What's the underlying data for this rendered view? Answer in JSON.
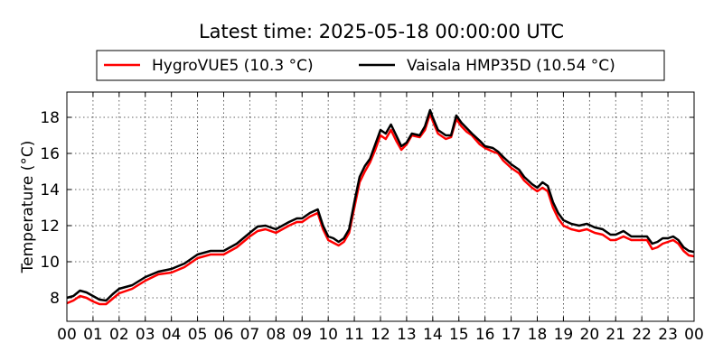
{
  "chart_data": {
    "type": "line",
    "title": "Latest time: 2025-05-18 00:00:00 UTC",
    "xlabel": "",
    "ylabel": "Temperature (°C)",
    "xlim": [
      0,
      24
    ],
    "ylim": [
      6.7,
      19.4
    ],
    "yticks": [
      8,
      10,
      12,
      14,
      16,
      18
    ],
    "xticks": [
      0,
      1,
      2,
      3,
      4,
      5,
      6,
      7,
      8,
      9,
      10,
      11,
      12,
      13,
      14,
      15,
      16,
      17,
      18,
      19,
      20,
      21,
      22,
      23,
      24
    ],
    "xtick_labels": [
      "00",
      "01",
      "02",
      "03",
      "04",
      "05",
      "06",
      "07",
      "08",
      "09",
      "10",
      "11",
      "12",
      "13",
      "14",
      "15",
      "16",
      "17",
      "18",
      "19",
      "20",
      "21",
      "22",
      "23",
      "00"
    ],
    "grid": true,
    "legend_position": "top-center",
    "series": [
      {
        "name": "HygroVUE5 (10.3 °C)",
        "color": "#ff0000",
        "points": [
          [
            0.0,
            7.7
          ],
          [
            0.25,
            7.85
          ],
          [
            0.5,
            8.1
          ],
          [
            0.75,
            8.0
          ],
          [
            1.0,
            7.8
          ],
          [
            1.25,
            7.65
          ],
          [
            1.5,
            7.65
          ],
          [
            1.75,
            7.95
          ],
          [
            2.0,
            8.25
          ],
          [
            2.5,
            8.5
          ],
          [
            3.0,
            8.95
          ],
          [
            3.5,
            9.3
          ],
          [
            4.0,
            9.4
          ],
          [
            4.5,
            9.7
          ],
          [
            5.0,
            10.2
          ],
          [
            5.5,
            10.4
          ],
          [
            6.0,
            10.4
          ],
          [
            6.5,
            10.8
          ],
          [
            7.0,
            11.4
          ],
          [
            7.3,
            11.7
          ],
          [
            7.6,
            11.8
          ],
          [
            8.0,
            11.6
          ],
          [
            8.5,
            12.0
          ],
          [
            8.8,
            12.2
          ],
          [
            9.0,
            12.2
          ],
          [
            9.3,
            12.5
          ],
          [
            9.6,
            12.7
          ],
          [
            9.8,
            11.8
          ],
          [
            10.0,
            11.2
          ],
          [
            10.2,
            11.05
          ],
          [
            10.4,
            10.9
          ],
          [
            10.6,
            11.1
          ],
          [
            10.8,
            11.6
          ],
          [
            11.0,
            13.0
          ],
          [
            11.2,
            14.4
          ],
          [
            11.4,
            15.0
          ],
          [
            11.6,
            15.5
          ],
          [
            11.8,
            16.2
          ],
          [
            12.0,
            17.0
          ],
          [
            12.2,
            16.8
          ],
          [
            12.4,
            17.3
          ],
          [
            12.6,
            16.7
          ],
          [
            12.8,
            16.2
          ],
          [
            13.0,
            16.5
          ],
          [
            13.2,
            17.0
          ],
          [
            13.5,
            16.9
          ],
          [
            13.7,
            17.3
          ],
          [
            13.9,
            18.2
          ],
          [
            14.0,
            17.8
          ],
          [
            14.2,
            17.1
          ],
          [
            14.5,
            16.8
          ],
          [
            14.7,
            16.9
          ],
          [
            14.9,
            17.9
          ],
          [
            15.1,
            17.5
          ],
          [
            15.3,
            17.2
          ],
          [
            15.5,
            17.0
          ],
          [
            15.8,
            16.5
          ],
          [
            16.0,
            16.3
          ],
          [
            16.3,
            16.1
          ],
          [
            16.5,
            16.0
          ],
          [
            16.7,
            15.6
          ],
          [
            17.0,
            15.2
          ],
          [
            17.3,
            14.9
          ],
          [
            17.5,
            14.5
          ],
          [
            17.8,
            14.1
          ],
          [
            18.0,
            13.9
          ],
          [
            18.2,
            14.1
          ],
          [
            18.4,
            13.9
          ],
          [
            18.6,
            13.0
          ],
          [
            18.8,
            12.4
          ],
          [
            19.0,
            12.0
          ],
          [
            19.3,
            11.8
          ],
          [
            19.6,
            11.7
          ],
          [
            19.9,
            11.8
          ],
          [
            20.2,
            11.6
          ],
          [
            20.5,
            11.5
          ],
          [
            20.8,
            11.2
          ],
          [
            21.0,
            11.2
          ],
          [
            21.3,
            11.4
          ],
          [
            21.6,
            11.2
          ],
          [
            22.0,
            11.2
          ],
          [
            22.2,
            11.2
          ],
          [
            22.4,
            10.7
          ],
          [
            22.6,
            10.8
          ],
          [
            22.8,
            11.0
          ],
          [
            23.0,
            11.1
          ],
          [
            23.2,
            11.2
          ],
          [
            23.4,
            11.0
          ],
          [
            23.6,
            10.6
          ],
          [
            23.8,
            10.35
          ],
          [
            24.0,
            10.3
          ]
        ]
      },
      {
        "name": "Vaisala HMP35D (10.54 °C)",
        "color": "#000000",
        "points": [
          [
            0.0,
            8.0
          ],
          [
            0.25,
            8.1
          ],
          [
            0.5,
            8.4
          ],
          [
            0.75,
            8.3
          ],
          [
            1.0,
            8.1
          ],
          [
            1.25,
            7.9
          ],
          [
            1.5,
            7.85
          ],
          [
            1.75,
            8.2
          ],
          [
            2.0,
            8.5
          ],
          [
            2.5,
            8.7
          ],
          [
            3.0,
            9.15
          ],
          [
            3.5,
            9.45
          ],
          [
            4.0,
            9.6
          ],
          [
            4.5,
            9.9
          ],
          [
            5.0,
            10.4
          ],
          [
            5.5,
            10.6
          ],
          [
            6.0,
            10.6
          ],
          [
            6.5,
            11.0
          ],
          [
            7.0,
            11.6
          ],
          [
            7.3,
            11.95
          ],
          [
            7.6,
            12.0
          ],
          [
            8.0,
            11.8
          ],
          [
            8.5,
            12.2
          ],
          [
            8.8,
            12.4
          ],
          [
            9.0,
            12.4
          ],
          [
            9.3,
            12.7
          ],
          [
            9.6,
            12.9
          ],
          [
            9.8,
            12.0
          ],
          [
            10.0,
            11.4
          ],
          [
            10.2,
            11.3
          ],
          [
            10.4,
            11.1
          ],
          [
            10.6,
            11.3
          ],
          [
            10.8,
            11.8
          ],
          [
            11.0,
            13.3
          ],
          [
            11.2,
            14.7
          ],
          [
            11.4,
            15.3
          ],
          [
            11.6,
            15.7
          ],
          [
            11.8,
            16.5
          ],
          [
            12.0,
            17.3
          ],
          [
            12.2,
            17.1
          ],
          [
            12.4,
            17.6
          ],
          [
            12.6,
            17.0
          ],
          [
            12.8,
            16.4
          ],
          [
            13.0,
            16.6
          ],
          [
            13.2,
            17.1
          ],
          [
            13.5,
            17.0
          ],
          [
            13.7,
            17.5
          ],
          [
            13.9,
            18.4
          ],
          [
            14.0,
            18.0
          ],
          [
            14.2,
            17.3
          ],
          [
            14.5,
            17.0
          ],
          [
            14.7,
            17.0
          ],
          [
            14.9,
            18.1
          ],
          [
            15.1,
            17.7
          ],
          [
            15.3,
            17.4
          ],
          [
            15.5,
            17.1
          ],
          [
            15.8,
            16.7
          ],
          [
            16.0,
            16.4
          ],
          [
            16.3,
            16.3
          ],
          [
            16.5,
            16.1
          ],
          [
            16.7,
            15.8
          ],
          [
            17.0,
            15.4
          ],
          [
            17.3,
            15.1
          ],
          [
            17.5,
            14.7
          ],
          [
            17.8,
            14.3
          ],
          [
            18.0,
            14.1
          ],
          [
            18.2,
            14.4
          ],
          [
            18.4,
            14.2
          ],
          [
            18.6,
            13.3
          ],
          [
            18.8,
            12.7
          ],
          [
            19.0,
            12.3
          ],
          [
            19.3,
            12.1
          ],
          [
            19.6,
            12.0
          ],
          [
            19.9,
            12.1
          ],
          [
            20.2,
            11.9
          ],
          [
            20.5,
            11.8
          ],
          [
            20.8,
            11.5
          ],
          [
            21.0,
            11.5
          ],
          [
            21.3,
            11.7
          ],
          [
            21.6,
            11.4
          ],
          [
            22.0,
            11.4
          ],
          [
            22.2,
            11.4
          ],
          [
            22.4,
            11.0
          ],
          [
            22.6,
            11.1
          ],
          [
            22.8,
            11.3
          ],
          [
            23.0,
            11.3
          ],
          [
            23.2,
            11.4
          ],
          [
            23.4,
            11.2
          ],
          [
            23.6,
            10.8
          ],
          [
            23.8,
            10.6
          ],
          [
            24.0,
            10.54
          ]
        ]
      }
    ]
  }
}
